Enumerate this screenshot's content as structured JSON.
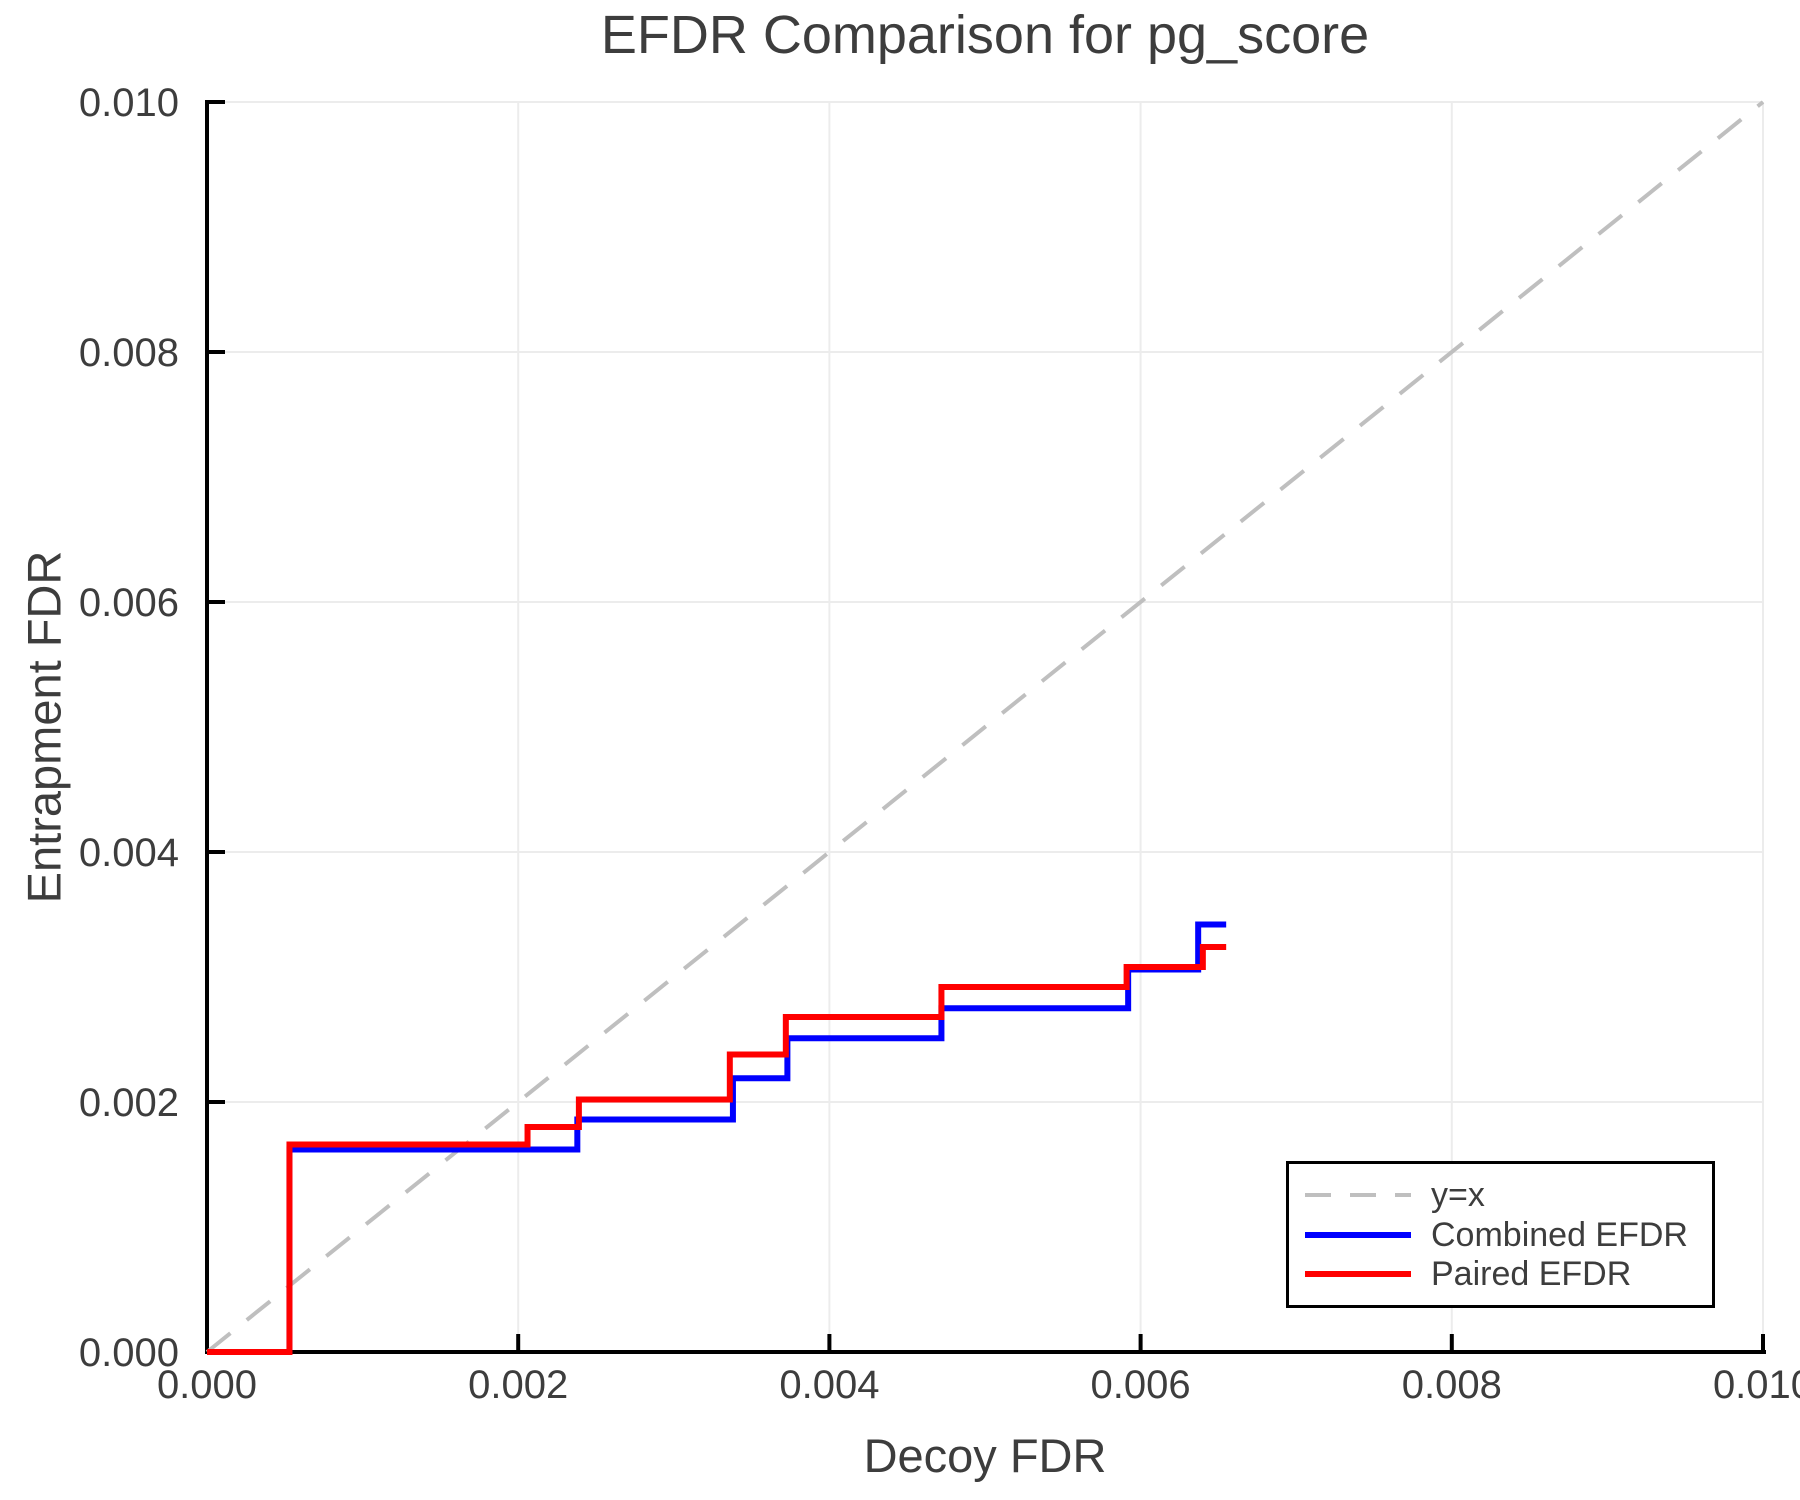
{
  "title": "EFDR Comparison for pg_score",
  "colors": {
    "text": "#3d3d3d",
    "spine": "#000000",
    "grid": "#ececec",
    "diagonal": "#bfbfbf",
    "combined": "#0000ff",
    "paired": "#ff0000",
    "background": "#ffffff"
  },
  "legend": {
    "items": [
      {
        "label": "y=x",
        "style": "dashed",
        "color": "#bfbfbf"
      },
      {
        "label": "Combined EFDR",
        "style": "solid",
        "color": "#0000ff"
      },
      {
        "label": "Paired EFDR",
        "style": "solid",
        "color": "#ff0000"
      }
    ],
    "position": "bottom-right"
  },
  "chart_data": {
    "type": "line",
    "title": "EFDR Comparison for pg_score",
    "xlabel": "Decoy FDR",
    "ylabel": "Entrapment FDR",
    "xlim": [
      0.0,
      0.01
    ],
    "ylim": [
      0.0,
      0.01
    ],
    "grid": true,
    "legend_position": "bottom-right",
    "x_ticks": {
      "values": [
        0.0,
        0.002,
        0.004,
        0.006,
        0.008,
        0.01
      ],
      "labels": [
        "0.000",
        "0.002",
        "0.004",
        "0.006",
        "0.008",
        "0.010"
      ]
    },
    "y_ticks": {
      "values": [
        0.0,
        0.002,
        0.004,
        0.006,
        0.008,
        0.01
      ],
      "labels": [
        "0.000",
        "0.002",
        "0.004",
        "0.006",
        "0.008",
        "0.010"
      ]
    },
    "series": [
      {
        "name": "y=x",
        "slug": "diagonal-reference-line",
        "type": "line",
        "color": "#bfbfbf",
        "dashed": true,
        "points": [
          [
            0.0,
            0.0
          ],
          [
            0.01,
            0.01
          ]
        ]
      },
      {
        "name": "Combined EFDR",
        "slug": "combined-efdr-line",
        "type": "step-post",
        "color": "#0000ff",
        "dashed": false,
        "steps": [
          [
            0.0,
            0.0
          ],
          [
            0.00053,
            0.00162
          ],
          [
            0.00238,
            0.00186
          ],
          [
            0.00338,
            0.00219
          ],
          [
            0.00373,
            0.00251
          ],
          [
            0.00472,
            0.00275
          ],
          [
            0.00592,
            0.00306
          ],
          [
            0.00637,
            0.00342
          ]
        ],
        "x_end": 0.00655
      },
      {
        "name": "Paired EFDR",
        "slug": "paired-efdr-line",
        "type": "step-post",
        "color": "#ff0000",
        "dashed": false,
        "steps": [
          [
            0.0,
            0.0
          ],
          [
            0.00053,
            0.00166
          ],
          [
            0.00206,
            0.0018
          ],
          [
            0.00239,
            0.00202
          ],
          [
            0.00336,
            0.00238
          ],
          [
            0.00372,
            0.00268
          ],
          [
            0.00472,
            0.00292
          ],
          [
            0.00591,
            0.00308
          ],
          [
            0.0064,
            0.00324
          ]
        ],
        "x_end": 0.00655
      }
    ]
  }
}
